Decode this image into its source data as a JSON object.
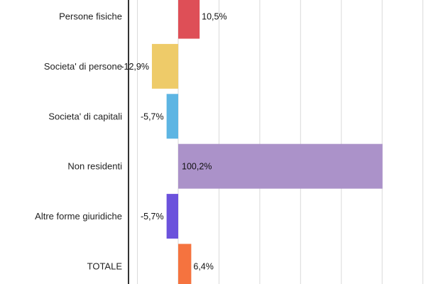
{
  "chart_data": {
    "type": "bar",
    "orientation": "horizontal",
    "title": "",
    "xlabel": "",
    "ylabel": "",
    "grid": true,
    "legend": "none",
    "xlim": [
      -25,
      125
    ],
    "categories": [
      "Persone fisiche",
      "Societa' di persone",
      "Societa' di capitali",
      "Non residenti",
      "Altre forme giuridiche",
      "TOTALE"
    ],
    "values": [
      10.5,
      -12.9,
      -5.7,
      100.2,
      -5.7,
      6.4
    ],
    "value_labels": [
      "10,5%",
      "-12,9%",
      "-5,7%",
      "100,2%",
      "-5,7%",
      "6,4%"
    ],
    "colors": [
      "#de4f57",
      "#eecb69",
      "#5db5e3",
      "#ab92c9",
      "#6b52dc",
      "#f5733f"
    ]
  }
}
